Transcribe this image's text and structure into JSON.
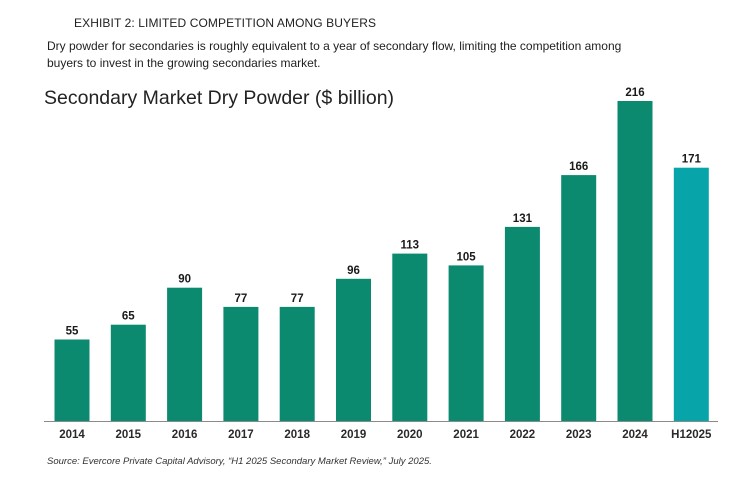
{
  "header": {
    "exhibit": "EXHIBIT 2: LIMITED COMPETITION AMONG BUYERS",
    "subtitle": "Dry powder for secondaries is roughly equivalent to a year of secondary flow, limiting the competition among buyers to invest in the growing secondaries market."
  },
  "footer": {
    "source": "Source: Evercore Private Capital Advisory, “H1 2025 Secondary Market Review,” July 2025."
  },
  "colors": {
    "primary": "#0b8a6f",
    "highlight": "#07a5a9",
    "axis": "#8a8a8a"
  },
  "chart_data": {
    "type": "bar",
    "title": "Secondary Market Dry Powder ($ billion)",
    "categories": [
      "2014",
      "2015",
      "2016",
      "2017",
      "2018",
      "2019",
      "2020",
      "2021",
      "2022",
      "2023",
      "2024",
      "H12025"
    ],
    "values": [
      55,
      65,
      90,
      77,
      77,
      96,
      113,
      105,
      131,
      166,
      216,
      171
    ],
    "highlight_category": "H12025",
    "ylim": [
      0,
      216
    ],
    "grid": false,
    "legend": "none"
  }
}
